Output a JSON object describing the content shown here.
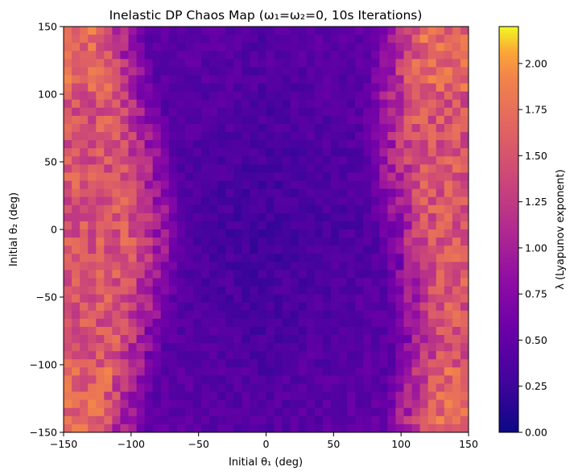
{
  "chart_data": {
    "type": "heatmap",
    "title": "Inelastic DP Chaos Map (ω₁=ω₂=0, 10s Iterations)",
    "xlabel": "Initial θ₁ (deg)",
    "ylabel": "Initial θ₂ (deg)",
    "colorbar_label": "λ (Lyapunov exponent)",
    "colormap": "plasma",
    "xlim": [
      -150,
      150
    ],
    "ylim": [
      -150,
      150
    ],
    "clim": [
      0,
      2.2
    ],
    "grid_size": 50,
    "x_ticks": [
      "−150",
      "−100",
      "−50",
      "0",
      "50",
      "100",
      "150"
    ],
    "y_ticks": [
      "−150",
      "−100",
      "−50",
      "0",
      "50",
      "100",
      "150"
    ],
    "cbar_ticks": [
      "0.00",
      "0.25",
      "0.50",
      "0.75",
      "1.00",
      "1.25",
      "1.50",
      "1.75",
      "2.00"
    ],
    "pattern_note_values": {
      "edge_columns_lambda_approx": 1.5,
      "central_band_lambda_approx": 0.4,
      "central_band_x_range_deg": [
        -75,
        80
      ]
    }
  }
}
